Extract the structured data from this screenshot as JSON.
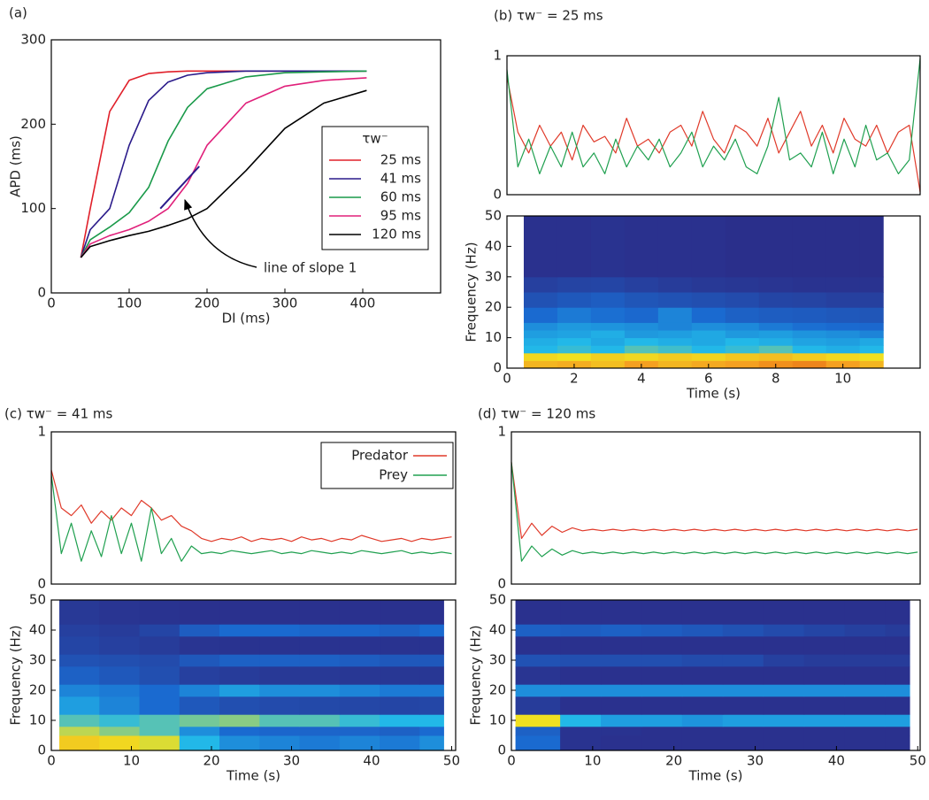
{
  "chart_data": [
    {
      "type": "line",
      "title": "(a)",
      "xlabel": "DI (ms)",
      "ylabel": "APD (ms)",
      "x": [
        38,
        50,
        75,
        100,
        125,
        150,
        175,
        200,
        250,
        300,
        350,
        405
      ],
      "series": [
        {
          "name": "25 ms",
          "color": "#e0202a",
          "values": [
            42,
            100,
            215,
            252,
            260,
            262,
            263,
            263,
            263,
            263,
            263,
            263
          ]
        },
        {
          "name": "41 ms",
          "color": "#2a1a8a",
          "values": [
            42,
            75,
            100,
            175,
            228,
            250,
            258,
            261,
            263,
            263,
            263,
            263
          ]
        },
        {
          "name": "60 ms",
          "color": "#1a9a4a",
          "values": [
            42,
            63,
            78,
            95,
            125,
            180,
            220,
            242,
            256,
            261,
            262,
            263
          ]
        },
        {
          "name": "95 ms",
          "color": "#e0207a",
          "values": [
            42,
            58,
            68,
            75,
            85,
            100,
            130,
            175,
            225,
            245,
            252,
            255
          ]
        },
        {
          "name": "120 ms",
          "color": "#000000",
          "values": [
            42,
            55,
            62,
            68,
            73,
            80,
            88,
            100,
            145,
            195,
            225,
            240
          ]
        }
      ],
      "xlim": [
        0,
        500
      ],
      "ylim": [
        0,
        300
      ],
      "xticks": [
        0,
        100,
        200,
        300,
        400
      ],
      "yticks": [
        0,
        100,
        200,
        300
      ],
      "legend": "center right",
      "legend_title": "τw⁻",
      "annotation": {
        "text": "line of slope 1",
        "x": [
          140,
          190
        ],
        "y": [
          100,
          150
        ],
        "color": "#2a1a8a"
      }
    },
    {
      "type": "line",
      "title": "(b) τw⁻ = 25 ms",
      "x": [
        0,
        0.3,
        0.6,
        0.9,
        1.2,
        1.5,
        1.8,
        2.1,
        2.4,
        2.7,
        3,
        3.3,
        3.6,
        3.9,
        4.2,
        4.5,
        4.8,
        5.1,
        5.4,
        5.7,
        6,
        6.3,
        6.6,
        6.9,
        7.2,
        7.5,
        7.8,
        8.1,
        8.4,
        8.7,
        9,
        9.3,
        9.6,
        9.9,
        10.2,
        10.5,
        10.8,
        11.1,
        11.4
      ],
      "series": [
        {
          "color": "#e03a2a",
          "values": [
            0.85,
            0.45,
            0.3,
            0.5,
            0.35,
            0.45,
            0.25,
            0.5,
            0.38,
            0.42,
            0.3,
            0.55,
            0.35,
            0.4,
            0.3,
            0.45,
            0.5,
            0.35,
            0.6,
            0.4,
            0.3,
            0.5,
            0.45,
            0.35,
            0.55,
            0.3,
            0.45,
            0.6,
            0.35,
            0.5,
            0.3,
            0.55,
            0.4,
            0.35,
            0.5,
            0.3,
            0.45,
            0.5,
            0.02
          ]
        },
        {
          "color": "#20a050",
          "values": [
            0.9,
            0.2,
            0.4,
            0.15,
            0.35,
            0.2,
            0.45,
            0.2,
            0.3,
            0.15,
            0.4,
            0.2,
            0.35,
            0.25,
            0.4,
            0.2,
            0.3,
            0.45,
            0.2,
            0.35,
            0.25,
            0.4,
            0.2,
            0.15,
            0.35,
            0.7,
            0.25,
            0.3,
            0.2,
            0.45,
            0.15,
            0.4,
            0.2,
            0.5,
            0.25,
            0.3,
            0.15,
            0.25,
            0.98
          ]
        }
      ],
      "xlim": [
        0,
        11.4
      ],
      "ylim": [
        0,
        1
      ],
      "yticks": [
        0,
        1
      ]
    },
    {
      "type": "heatmap",
      "xlabel": "Time (s)",
      "ylabel": "Frequency (Hz)",
      "colormap": "jet",
      "xbins": [
        0.5,
        1.5,
        2.5,
        3.5,
        4.5,
        5.5,
        6.5,
        7.5,
        8.5,
        9.5,
        10.5,
        11.2
      ],
      "ybins": [
        0,
        2.5,
        5,
        7.5,
        10,
        12.5,
        15,
        20,
        25,
        30,
        50
      ],
      "values": [
        [
          0.8,
          0.82,
          0.78,
          0.85,
          0.8,
          0.83,
          0.85,
          0.88,
          0.9,
          0.85,
          0.8
        ],
        [
          0.72,
          0.7,
          0.74,
          0.72,
          0.75,
          0.73,
          0.76,
          0.78,
          0.75,
          0.72,
          0.7
        ],
        [
          0.5,
          0.52,
          0.5,
          0.55,
          0.53,
          0.5,
          0.52,
          0.55,
          0.5,
          0.48,
          0.5
        ],
        [
          0.48,
          0.5,
          0.47,
          0.5,
          0.48,
          0.47,
          0.5,
          0.48,
          0.46,
          0.45,
          0.47
        ],
        [
          0.45,
          0.46,
          0.48,
          0.44,
          0.45,
          0.47,
          0.44,
          0.45,
          0.43,
          0.42,
          0.4
        ],
        [
          0.42,
          0.44,
          0.43,
          0.42,
          0.4,
          0.42,
          0.41,
          0.38,
          0.36,
          0.35,
          0.34
        ],
        [
          0.35,
          0.38,
          0.36,
          0.34,
          0.4,
          0.35,
          0.3,
          0.28,
          0.27,
          0.25,
          0.24
        ],
        [
          0.22,
          0.25,
          0.28,
          0.24,
          0.22,
          0.2,
          0.18,
          0.15,
          0.14,
          0.12,
          0.12
        ],
        [
          0.12,
          0.14,
          0.15,
          0.12,
          0.1,
          0.08,
          0.07,
          0.06,
          0.05,
          0.05,
          0.05
        ],
        [
          0.04,
          0.04,
          0.05,
          0.04,
          0.04,
          0.04,
          0.03,
          0.03,
          0.03,
          0.03,
          0.03
        ]
      ],
      "xlim": [
        0,
        12.3
      ],
      "ylim": [
        0,
        50
      ],
      "xticks": [
        0,
        2,
        4,
        6,
        8,
        10
      ],
      "yticks": [
        0,
        10,
        20,
        30,
        40,
        50
      ]
    },
    {
      "type": "line",
      "title": "(c) τw⁻ = 41 ms",
      "x": [
        0,
        1.25,
        2.5,
        3.75,
        5,
        6.25,
        7.5,
        8.75,
        10,
        11.25,
        12.5,
        13.75,
        15,
        16.25,
        17.5,
        18.75,
        20,
        21.25,
        22.5,
        23.75,
        25,
        26.25,
        27.5,
        28.75,
        30,
        31.25,
        32.5,
        33.75,
        35,
        36.25,
        37.5,
        38.75,
        40,
        41.25,
        42.5,
        43.75,
        45,
        46.25,
        47.5,
        48.75,
        50
      ],
      "series": [
        {
          "name": "Predator",
          "color": "#e03a2a",
          "values": [
            0.75,
            0.5,
            0.45,
            0.52,
            0.4,
            0.48,
            0.42,
            0.5,
            0.45,
            0.55,
            0.5,
            0.42,
            0.45,
            0.38,
            0.35,
            0.3,
            0.28,
            0.3,
            0.29,
            0.31,
            0.28,
            0.3,
            0.29,
            0.3,
            0.28,
            0.31,
            0.29,
            0.3,
            0.28,
            0.3,
            0.29,
            0.32,
            0.3,
            0.28,
            0.29,
            0.3,
            0.28,
            0.3,
            0.29,
            0.3,
            0.31
          ]
        },
        {
          "name": "Prey",
          "color": "#20a050",
          "values": [
            0.72,
            0.2,
            0.4,
            0.15,
            0.35,
            0.18,
            0.45,
            0.2,
            0.4,
            0.15,
            0.5,
            0.2,
            0.3,
            0.15,
            0.25,
            0.2,
            0.21,
            0.2,
            0.22,
            0.21,
            0.2,
            0.21,
            0.22,
            0.2,
            0.21,
            0.2,
            0.22,
            0.21,
            0.2,
            0.21,
            0.2,
            0.22,
            0.21,
            0.2,
            0.21,
            0.22,
            0.2,
            0.21,
            0.2,
            0.21,
            0.2
          ]
        }
      ],
      "xlim": [
        0,
        50.5
      ],
      "ylim": [
        0,
        1
      ],
      "yticks": [
        0,
        1
      ],
      "legend": "upper right"
    },
    {
      "type": "heatmap",
      "xlabel": "Time (s)",
      "ylabel": "Frequency (Hz)",
      "colormap": "jet",
      "xbins": [
        1,
        6,
        11,
        16,
        21,
        26,
        31,
        36,
        41,
        46,
        49
      ],
      "ybins": [
        0,
        5,
        8,
        12,
        18,
        22,
        28,
        32,
        38,
        42,
        50
      ],
      "values": [
        [
          0.75,
          0.72,
          0.68,
          0.5,
          0.42,
          0.4,
          0.38,
          0.4,
          0.38,
          0.42
        ],
        [
          0.65,
          0.6,
          0.55,
          0.42,
          0.35,
          0.33,
          0.32,
          0.32,
          0.3,
          0.35
        ],
        [
          0.55,
          0.52,
          0.55,
          0.58,
          0.6,
          0.55,
          0.55,
          0.52,
          0.5,
          0.5
        ],
        [
          0.45,
          0.4,
          0.35,
          0.25,
          0.2,
          0.18,
          0.17,
          0.16,
          0.15,
          0.16
        ],
        [
          0.4,
          0.38,
          0.35,
          0.4,
          0.45,
          0.42,
          0.42,
          0.4,
          0.38,
          0.38
        ],
        [
          0.3,
          0.25,
          0.2,
          0.12,
          0.1,
          0.08,
          0.08,
          0.07,
          0.07,
          0.07
        ],
        [
          0.22,
          0.2,
          0.18,
          0.25,
          0.3,
          0.3,
          0.3,
          0.28,
          0.25,
          0.25
        ],
        [
          0.15,
          0.12,
          0.1,
          0.06,
          0.05,
          0.05,
          0.05,
          0.05,
          0.05,
          0.05
        ],
        [
          0.12,
          0.1,
          0.15,
          0.28,
          0.35,
          0.35,
          0.32,
          0.33,
          0.3,
          0.35
        ],
        [
          0.08,
          0.06,
          0.05,
          0.04,
          0.04,
          0.04,
          0.04,
          0.04,
          0.04,
          0.04
        ]
      ],
      "xlim": [
        0,
        50.5
      ],
      "ylim": [
        0,
        50
      ],
      "xticks": [
        0,
        10,
        20,
        30,
        40,
        50
      ],
      "yticks": [
        0,
        10,
        20,
        30,
        40,
        50
      ]
    },
    {
      "type": "line",
      "title": "(d) τw⁻ = 120 ms",
      "x": [
        0,
        1.25,
        2.5,
        3.75,
        5,
        6.25,
        7.5,
        8.75,
        10,
        11.25,
        12.5,
        13.75,
        15,
        16.25,
        17.5,
        18.75,
        20,
        21.25,
        22.5,
        23.75,
        25,
        26.25,
        27.5,
        28.75,
        30,
        31.25,
        32.5,
        33.75,
        35,
        36.25,
        37.5,
        38.75,
        40,
        41.25,
        42.5,
        43.75,
        45,
        46.25,
        47.5,
        48.75,
        50
      ],
      "series": [
        {
          "color": "#e03a2a",
          "values": [
            0.8,
            0.3,
            0.4,
            0.32,
            0.38,
            0.34,
            0.37,
            0.35,
            0.36,
            0.35,
            0.36,
            0.35,
            0.36,
            0.35,
            0.36,
            0.35,
            0.36,
            0.35,
            0.36,
            0.35,
            0.36,
            0.35,
            0.36,
            0.35,
            0.36,
            0.35,
            0.36,
            0.35,
            0.36,
            0.35,
            0.36,
            0.35,
            0.36,
            0.35,
            0.36,
            0.35,
            0.36,
            0.35,
            0.36,
            0.35,
            0.36
          ]
        },
        {
          "color": "#20a050",
          "values": [
            0.8,
            0.15,
            0.25,
            0.18,
            0.23,
            0.19,
            0.22,
            0.2,
            0.21,
            0.2,
            0.21,
            0.2,
            0.21,
            0.2,
            0.21,
            0.2,
            0.21,
            0.2,
            0.21,
            0.2,
            0.21,
            0.2,
            0.21,
            0.2,
            0.21,
            0.2,
            0.21,
            0.2,
            0.21,
            0.2,
            0.21,
            0.2,
            0.21,
            0.2,
            0.21,
            0.2,
            0.21,
            0.2,
            0.21,
            0.2,
            0.21
          ]
        }
      ],
      "xlim": [
        0,
        50.3
      ],
      "ylim": [
        0,
        1
      ],
      "yticks": [
        0,
        1
      ]
    },
    {
      "type": "heatmap",
      "xlabel": "Time (s)",
      "ylabel": "Frequency (Hz)",
      "colormap": "jet",
      "xbins": [
        0.5,
        6,
        11,
        16,
        21,
        26,
        31,
        36,
        41,
        46,
        49
      ],
      "ybins": [
        0,
        5,
        8,
        12,
        18,
        22,
        28,
        32,
        38,
        42,
        50
      ],
      "values": [
        [
          0.35,
          0.05,
          0.04,
          0.04,
          0.04,
          0.04,
          0.04,
          0.04,
          0.04,
          0.04
        ],
        [
          0.3,
          0.05,
          0.05,
          0.04,
          0.04,
          0.04,
          0.04,
          0.04,
          0.04,
          0.04
        ],
        [
          0.7,
          0.5,
          0.45,
          0.45,
          0.43,
          0.45,
          0.45,
          0.45,
          0.45,
          0.45
        ],
        [
          0.1,
          0.04,
          0.04,
          0.04,
          0.04,
          0.04,
          0.04,
          0.04,
          0.04,
          0.04
        ],
        [
          0.42,
          0.42,
          0.42,
          0.42,
          0.42,
          0.42,
          0.42,
          0.42,
          0.42,
          0.42
        ],
        [
          0.06,
          0.04,
          0.04,
          0.04,
          0.04,
          0.04,
          0.04,
          0.04,
          0.04,
          0.04
        ],
        [
          0.22,
          0.2,
          0.2,
          0.2,
          0.18,
          0.18,
          0.12,
          0.1,
          0.1,
          0.1
        ],
        [
          0.04,
          0.04,
          0.04,
          0.04,
          0.04,
          0.04,
          0.04,
          0.04,
          0.04,
          0.04
        ],
        [
          0.3,
          0.28,
          0.3,
          0.28,
          0.25,
          0.22,
          0.18,
          0.15,
          0.12,
          0.1
        ],
        [
          0.04,
          0.04,
          0.04,
          0.04,
          0.04,
          0.04,
          0.04,
          0.04,
          0.04,
          0.04
        ]
      ],
      "xlim": [
        0,
        50.3
      ],
      "ylim": [
        0,
        50
      ],
      "xticks": [
        0,
        10,
        20,
        30,
        40,
        50
      ],
      "yticks": [
        0,
        10,
        20,
        30,
        40,
        50
      ]
    }
  ]
}
